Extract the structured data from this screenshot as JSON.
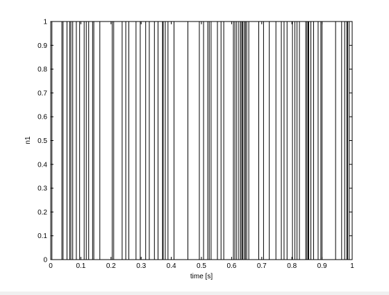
{
  "chart_data": {
    "type": "raster",
    "title": "",
    "xlabel": "time [s]",
    "ylabel": "n1",
    "xlim": [
      0,
      1
    ],
    "ylim": [
      0,
      1
    ],
    "xticks": [
      0,
      0.1,
      0.2,
      0.3,
      0.4,
      0.5,
      0.6,
      0.7,
      0.8,
      0.9,
      1
    ],
    "xtick_labels": [
      "0",
      "0.1",
      "0.2",
      "0.3",
      "0.4",
      "0.5",
      "0.6",
      "0.7",
      "0.8",
      "0.9",
      "1"
    ],
    "yticks": [
      0,
      0.1,
      0.2,
      0.3,
      0.4,
      0.5,
      0.6,
      0.7,
      0.8,
      0.9,
      1
    ],
    "ytick_labels": [
      "0",
      "0.1",
      "0.2",
      "0.3",
      "0.4",
      "0.5",
      "0.6",
      "0.7",
      "0.8",
      "0.9",
      "1"
    ],
    "grid": false,
    "line_color": "#000000",
    "spike_times": [
      0.004,
      0.037,
      0.041,
      0.054,
      0.063,
      0.067,
      0.073,
      0.085,
      0.096,
      0.111,
      0.118,
      0.126,
      0.139,
      0.143,
      0.163,
      0.204,
      0.209,
      0.237,
      0.249,
      0.259,
      0.283,
      0.297,
      0.315,
      0.327,
      0.344,
      0.356,
      0.371,
      0.373,
      0.38,
      0.389,
      0.409,
      0.455,
      0.493,
      0.507,
      0.521,
      0.526,
      0.532,
      0.553,
      0.565,
      0.574,
      0.606,
      0.611,
      0.617,
      0.624,
      0.63,
      0.634,
      0.637,
      0.642,
      0.646,
      0.65,
      0.657,
      0.69,
      0.706,
      0.725,
      0.747,
      0.765,
      0.774,
      0.784,
      0.802,
      0.81,
      0.817,
      0.825,
      0.846,
      0.85,
      0.854,
      0.856,
      0.863,
      0.872,
      0.887,
      0.896,
      0.9,
      0.945,
      0.965,
      0.975,
      0.982,
      0.985,
      0.99
    ]
  }
}
